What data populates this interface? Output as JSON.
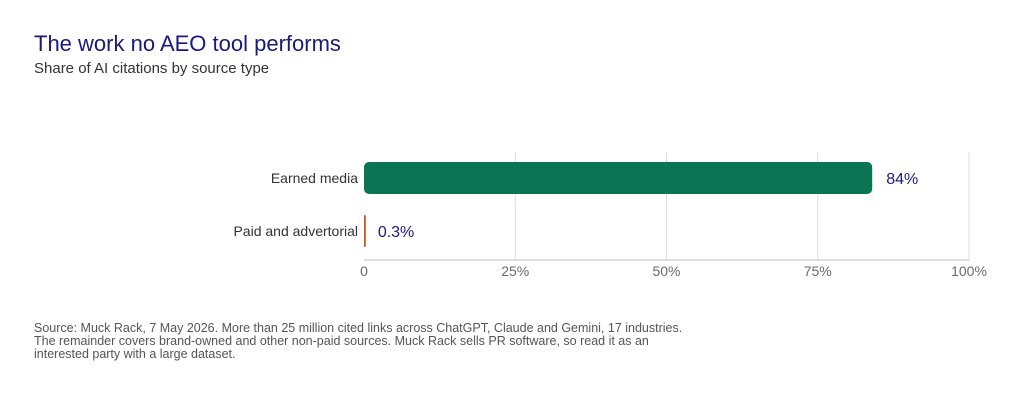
{
  "header": {
    "title": "The work no AEO tool performs",
    "subtitle": "Share of AI citations by source type"
  },
  "chart_data": {
    "type": "bar",
    "orientation": "horizontal",
    "categories": [
      "Earned media",
      "Paid and advertorial"
    ],
    "values": [
      84,
      0.3
    ],
    "value_labels": [
      "84%",
      "0.3%"
    ],
    "colors": [
      "#0b7553",
      "#d9531e"
    ],
    "title": "The work no AEO tool performs",
    "subtitle": "Share of AI citations by source type",
    "xlabel": "",
    "ylabel": "",
    "xlim": [
      0,
      100
    ],
    "ticks": [
      0,
      25,
      50,
      75,
      100
    ],
    "tick_labels": [
      "0",
      "25%",
      "50%",
      "75%",
      "100%"
    ],
    "grid": true,
    "legend": "none"
  },
  "footer": {
    "source": "Source: Muck Rack, 7 May 2026. More than 25 million cited links across ChatGPT, Claude and Gemini, 17 industries. The remainder covers brand-owned and other non-paid sources. Muck Rack sells PR software, so read it as an interested party with a large dataset."
  }
}
